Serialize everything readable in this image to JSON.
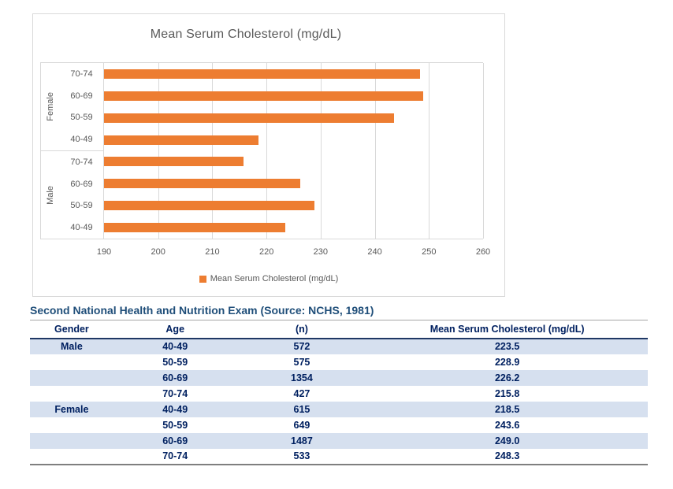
{
  "chart": {
    "title": "Mean Serum Cholesterol (mg/dL)",
    "legend": {
      "label": "Mean Serum Cholesterol (mg/dL)",
      "marker_color": "#ED7D31"
    }
  },
  "chart_data": {
    "type": "bar",
    "orientation": "horizontal",
    "title": "Mean Serum Cholesterol (mg/dL)",
    "xlim": [
      190,
      260
    ],
    "x_ticks": [
      190,
      200,
      210,
      220,
      230,
      240,
      250,
      260
    ],
    "grid": true,
    "legend_entries": [
      "Mean Serum Cholesterol (mg/dL)"
    ],
    "legend_position": "bottom",
    "bar_color": "#ED7D31",
    "groups": [
      {
        "label": "Female",
        "bars": [
          {
            "category": "70-74",
            "value": 248.3
          },
          {
            "category": "60-69",
            "value": 249.0
          },
          {
            "category": "50-59",
            "value": 243.6
          },
          {
            "category": "40-49",
            "value": 218.5
          }
        ]
      },
      {
        "label": "Male",
        "bars": [
          {
            "category": "70-74",
            "value": 215.8
          },
          {
            "category": "60-69",
            "value": 226.2
          },
          {
            "category": "50-59",
            "value": 228.9
          },
          {
            "category": "40-49",
            "value": 223.5
          }
        ]
      }
    ]
  },
  "table": {
    "title": "Second National Health and Nutrition Exam (Source: NCHS, 1981)",
    "columns": [
      "Gender",
      "Age",
      "(n)",
      "Mean Serum Cholesterol (mg/dL)"
    ],
    "rows": [
      {
        "gender": "Male",
        "age": "40-49",
        "n": "572",
        "mean": "223.5",
        "striped": true
      },
      {
        "gender": "",
        "age": "50-59",
        "n": "575",
        "mean": "228.9",
        "striped": false
      },
      {
        "gender": "",
        "age": "60-69",
        "n": "1354",
        "mean": "226.2",
        "striped": true
      },
      {
        "gender": "",
        "age": "70-74",
        "n": "427",
        "mean": "215.8",
        "striped": false
      },
      {
        "gender": "Female",
        "age": "40-49",
        "n": "615",
        "mean": "218.5",
        "striped": true
      },
      {
        "gender": "",
        "age": "50-59",
        "n": "649",
        "mean": "243.6",
        "striped": false
      },
      {
        "gender": "",
        "age": "60-69",
        "n": "1487",
        "mean": "249.0",
        "striped": true
      },
      {
        "gender": "",
        "age": "70-74",
        "n": "533",
        "mean": "248.3",
        "striped": false
      }
    ]
  },
  "colors": {
    "bar": "#ED7D31",
    "gridline": "#D9D9D9",
    "axis_text": "#595959",
    "table_title": "#1F4E79",
    "table_text": "#002060",
    "row_stripe": "#D6E0EF"
  }
}
